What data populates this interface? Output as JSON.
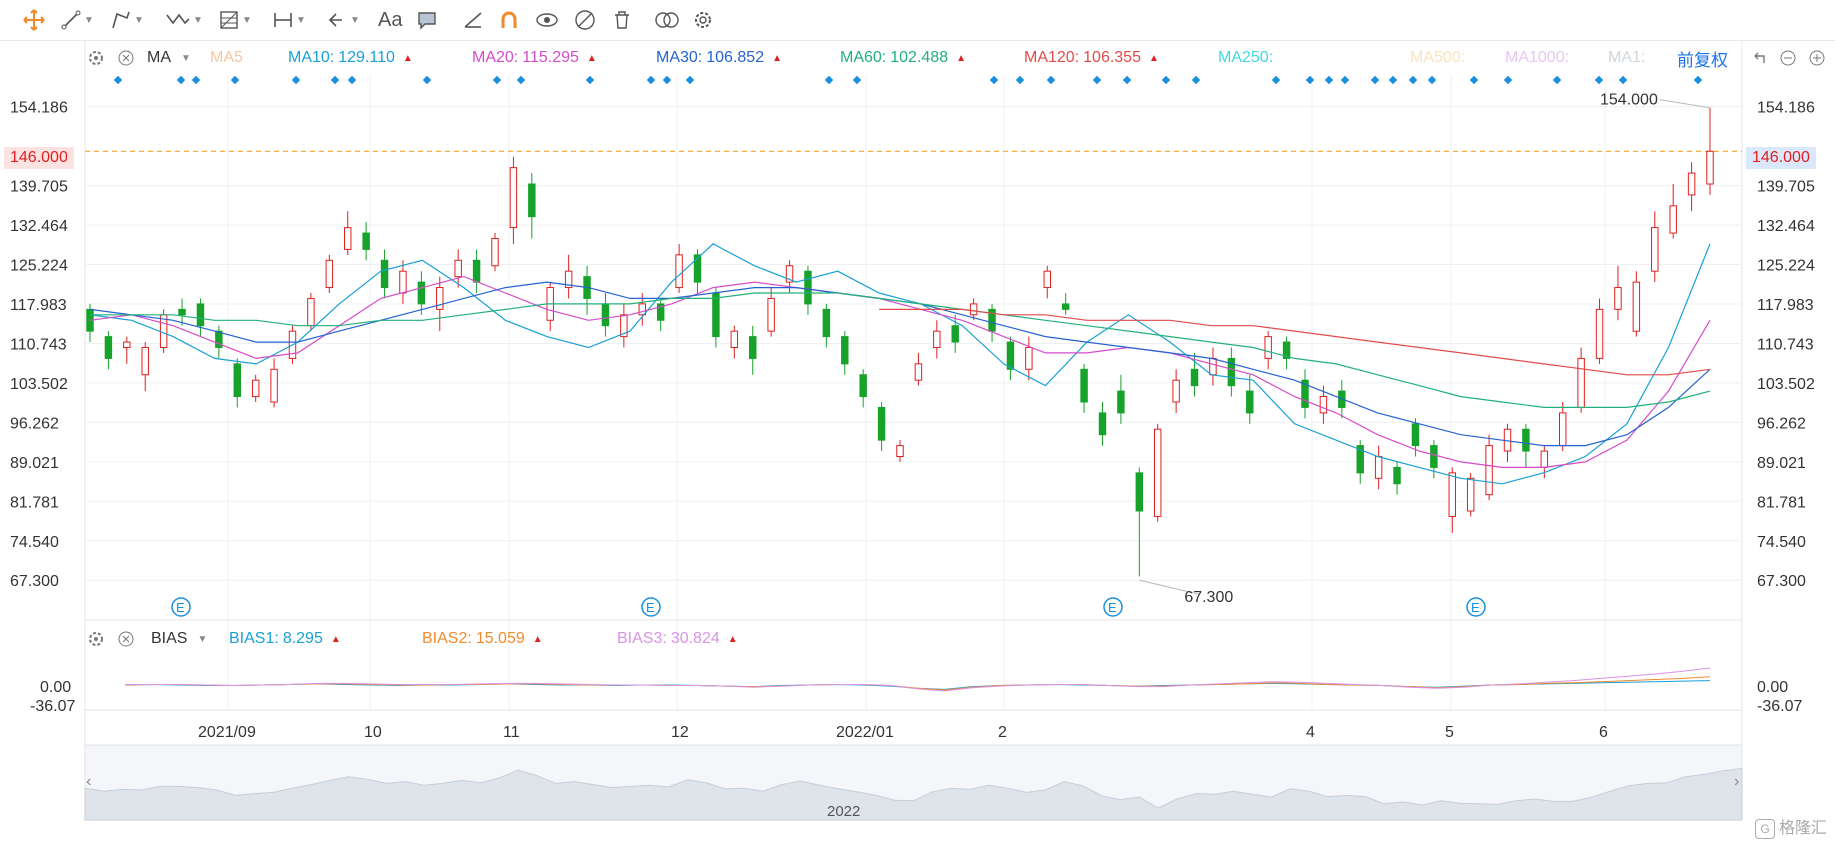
{
  "toolbar": {
    "icons": [
      "crosshair-icon",
      "line-tool-icon",
      "polyline-tool-icon",
      "wave-tool-icon",
      "fib-tool-icon",
      "measure-icon",
      "undo-icon",
      "text-tool-icon",
      "comment-icon",
      "ruler-icon",
      "magnet-icon",
      "eye-lock-icon",
      "eye-hide-icon",
      "delete-icon",
      "compare-icon",
      "settings-icon"
    ],
    "text_label": "Aa"
  },
  "main_legend": {
    "indicator": "MA",
    "items": [
      {
        "label": "MA5",
        "value": "",
        "color": "#f7c7a0",
        "arrow": false
      },
      {
        "label": "MA10:",
        "value": "129.110",
        "color": "#1aa0d6",
        "arrow": true
      },
      {
        "label": "MA20:",
        "value": "115.295",
        "color": "#d54cc9",
        "arrow": true
      },
      {
        "label": "MA30:",
        "value": "106.852",
        "color": "#2563d0",
        "arrow": true
      },
      {
        "label": "MA60:",
        "value": "102.488",
        "color": "#22b07a",
        "arrow": true
      },
      {
        "label": "MA120:",
        "value": "106.355",
        "color": "#e14b4b",
        "arrow": true
      },
      {
        "label": "MA250:",
        "value": "",
        "color": "#44d7e0",
        "arrow": false
      },
      {
        "label": "MA500:",
        "value": "",
        "color": "#f9e3bd",
        "arrow": false
      },
      {
        "label": "MA1000:",
        "value": "",
        "color": "#e5c7f2",
        "arrow": false
      },
      {
        "label": "MA1:",
        "value": "",
        "color": "#cfd6dd",
        "arrow": false
      }
    ],
    "adjust": "前复权"
  },
  "sub_legend": {
    "indicator": "BIAS",
    "items": [
      {
        "label": "BIAS1:",
        "value": "8.295",
        "color": "#1aa0d6"
      },
      {
        "label": "BIAS2:",
        "value": "15.059",
        "color": "#f28a2c"
      },
      {
        "label": "BIAS3:",
        "value": "30.824",
        "color": "#d993e6"
      }
    ]
  },
  "price_axis": [
    "154.186",
    "139.705",
    "132.464",
    "125.224",
    "117.983",
    "110.743",
    "103.502",
    "96.262",
    "89.021",
    "81.781",
    "74.540",
    "67.300"
  ],
  "current_price": "146.000",
  "bias_axis": [
    "0.00",
    "-36.07"
  ],
  "x_axis": [
    "2021/09",
    "10",
    "11",
    "12",
    "2022/01",
    "2",
    "4",
    "5",
    "6"
  ],
  "navigator_label": "2022",
  "annotations": {
    "high": "154.000",
    "low": "67.300"
  },
  "event_marker": "E",
  "watermark": "格隆汇",
  "colors": {
    "up": "#e02020",
    "down": "#17a22a",
    "grid": "#eef0f3",
    "dash": "#f5a623",
    "dots": "#1a8fe0"
  },
  "chart_data": {
    "type": "candlestick",
    "price_range": [
      67.3,
      154.186
    ],
    "series_ma": [
      {
        "name": "MA10",
        "color": "#1aa0d6",
        "values": [
          116,
          115,
          112,
          108,
          107,
          111,
          118,
          124,
          126,
          121,
          115,
          112,
          110,
          113,
          122,
          129,
          125,
          122,
          124,
          120,
          118,
          114,
          107,
          103,
          111,
          116,
          111,
          105,
          104,
          96,
          93,
          90,
          88,
          86,
          85,
          87,
          90,
          96,
          110,
          129
        ]
      },
      {
        "name": "MA20",
        "color": "#d54cc9",
        "values": [
          115,
          116,
          114,
          111,
          108,
          109,
          114,
          119,
          121,
          123,
          120,
          117,
          115,
          116,
          118,
          121,
          122,
          121,
          120,
          119,
          117,
          115,
          112,
          109,
          109,
          110,
          109,
          107,
          105,
          101,
          98,
          94,
          91,
          89,
          88,
          88,
          89,
          93,
          102,
          115
        ]
      },
      {
        "name": "MA30",
        "color": "#2563d0",
        "values": [
          117,
          116,
          115,
          113,
          111,
          111,
          113,
          115,
          117,
          119,
          121,
          122,
          121,
          119,
          119,
          120,
          121,
          121,
          120,
          119,
          118,
          116,
          114,
          112,
          111,
          110,
          109,
          108,
          106,
          104,
          101,
          98,
          96,
          94,
          93,
          92,
          92,
          94,
          99,
          106
        ]
      },
      {
        "name": "MA60",
        "color": "#22b07a",
        "values": [
          116,
          116,
          116,
          115,
          115,
          114,
          114,
          115,
          115,
          116,
          117,
          118,
          118,
          118,
          119,
          119,
          120,
          120,
          120,
          119,
          118,
          117,
          116,
          115,
          114,
          113,
          112,
          111,
          110,
          108,
          107,
          105,
          103,
          101,
          100,
          99,
          99,
          99,
          100,
          102
        ]
      },
      {
        "name": "MA120",
        "color": "#e14b4b",
        "values": [
          null,
          null,
          null,
          null,
          null,
          null,
          null,
          null,
          null,
          null,
          null,
          null,
          null,
          null,
          null,
          null,
          null,
          null,
          null,
          117,
          117,
          117,
          116,
          116,
          115,
          115,
          115,
          114,
          114,
          113,
          112,
          111,
          110,
          109,
          108,
          107,
          106,
          105,
          105,
          106
        ]
      }
    ],
    "candles": [
      {
        "o": 117,
        "c": 113,
        "h": 118,
        "l": 111
      },
      {
        "o": 112,
        "c": 108,
        "h": 113,
        "l": 106
      },
      {
        "o": 110,
        "c": 111,
        "h": 112,
        "l": 107
      },
      {
        "o": 105,
        "c": 110,
        "h": 111,
        "l": 102
      },
      {
        "o": 110,
        "c": 116,
        "h": 117,
        "l": 109
      },
      {
        "o": 117,
        "c": 116,
        "h": 119,
        "l": 114
      },
      {
        "o": 118,
        "c": 114,
        "h": 119,
        "l": 112
      },
      {
        "o": 113,
        "c": 110,
        "h": 114,
        "l": 108
      },
      {
        "o": 107,
        "c": 101,
        "h": 108,
        "l": 99
      },
      {
        "o": 101,
        "c": 104,
        "h": 105,
        "l": 100
      },
      {
        "o": 100,
        "c": 106,
        "h": 108,
        "l": 99
      },
      {
        "o": 108,
        "c": 113,
        "h": 114,
        "l": 107
      },
      {
        "o": 114,
        "c": 119,
        "h": 120,
        "l": 113
      },
      {
        "o": 121,
        "c": 126,
        "h": 127,
        "l": 120
      },
      {
        "o": 128,
        "c": 132,
        "h": 135,
        "l": 127
      },
      {
        "o": 131,
        "c": 128,
        "h": 133,
        "l": 126
      },
      {
        "o": 126,
        "c": 121,
        "h": 128,
        "l": 119
      },
      {
        "o": 120,
        "c": 124,
        "h": 126,
        "l": 118
      },
      {
        "o": 122,
        "c": 118,
        "h": 124,
        "l": 116
      },
      {
        "o": 117,
        "c": 121,
        "h": 123,
        "l": 113
      },
      {
        "o": 123,
        "c": 126,
        "h": 128,
        "l": 121
      },
      {
        "o": 126,
        "c": 122,
        "h": 128,
        "l": 120
      },
      {
        "o": 125,
        "c": 130,
        "h": 131,
        "l": 124
      },
      {
        "o": 132,
        "c": 143,
        "h": 145,
        "l": 129
      },
      {
        "o": 140,
        "c": 134,
        "h": 142,
        "l": 130
      },
      {
        "o": 115,
        "c": 121,
        "h": 122,
        "l": 113
      },
      {
        "o": 121,
        "c": 124,
        "h": 127,
        "l": 119
      },
      {
        "o": 123,
        "c": 119,
        "h": 125,
        "l": 116
      },
      {
        "o": 118,
        "c": 114,
        "h": 120,
        "l": 112
      },
      {
        "o": 112,
        "c": 116,
        "h": 118,
        "l": 110
      },
      {
        "o": 116,
        "c": 118,
        "h": 120,
        "l": 114
      },
      {
        "o": 118,
        "c": 115,
        "h": 119,
        "l": 113
      },
      {
        "o": 121,
        "c": 127,
        "h": 129,
        "l": 120
      },
      {
        "o": 127,
        "c": 122,
        "h": 128,
        "l": 120
      },
      {
        "o": 120,
        "c": 112,
        "h": 121,
        "l": 110
      },
      {
        "o": 110,
        "c": 113,
        "h": 114,
        "l": 108
      },
      {
        "o": 112,
        "c": 108,
        "h": 114,
        "l": 105
      },
      {
        "o": 113,
        "c": 119,
        "h": 121,
        "l": 112
      },
      {
        "o": 122,
        "c": 125,
        "h": 126,
        "l": 120
      },
      {
        "o": 124,
        "c": 118,
        "h": 125,
        "l": 116
      },
      {
        "o": 117,
        "c": 112,
        "h": 118,
        "l": 110
      },
      {
        "o": 112,
        "c": 107,
        "h": 113,
        "l": 105
      },
      {
        "o": 105,
        "c": 101,
        "h": 106,
        "l": 99
      },
      {
        "o": 99,
        "c": 93,
        "h": 100,
        "l": 91
      },
      {
        "o": 90,
        "c": 92,
        "h": 93,
        "l": 89
      },
      {
        "o": 104,
        "c": 107,
        "h": 109,
        "l": 103
      },
      {
        "o": 110,
        "c": 113,
        "h": 115,
        "l": 108
      },
      {
        "o": 114,
        "c": 111,
        "h": 116,
        "l": 109
      },
      {
        "o": 116,
        "c": 118,
        "h": 119,
        "l": 115
      },
      {
        "o": 117,
        "c": 113,
        "h": 118,
        "l": 111
      },
      {
        "o": 111,
        "c": 106,
        "h": 112,
        "l": 104
      },
      {
        "o": 106,
        "c": 110,
        "h": 112,
        "l": 104
      },
      {
        "o": 121,
        "c": 124,
        "h": 125,
        "l": 119
      },
      {
        "o": 118,
        "c": 117,
        "h": 120,
        "l": 116
      },
      {
        "o": 106,
        "c": 100,
        "h": 107,
        "l": 98
      },
      {
        "o": 98,
        "c": 94,
        "h": 100,
        "l": 92
      },
      {
        "o": 102,
        "c": 98,
        "h": 105,
        "l": 96
      },
      {
        "o": 87,
        "c": 80,
        "h": 88,
        "l": 68
      },
      {
        "o": 79,
        "c": 95,
        "h": 96,
        "l": 78
      },
      {
        "o": 100,
        "c": 104,
        "h": 106,
        "l": 98
      },
      {
        "o": 106,
        "c": 103,
        "h": 109,
        "l": 101
      },
      {
        "o": 105,
        "c": 108,
        "h": 110,
        "l": 103
      },
      {
        "o": 108,
        "c": 103,
        "h": 110,
        "l": 101
      },
      {
        "o": 102,
        "c": 98,
        "h": 105,
        "l": 96
      },
      {
        "o": 108,
        "c": 112,
        "h": 113,
        "l": 106
      },
      {
        "o": 111,
        "c": 108,
        "h": 112,
        "l": 106
      },
      {
        "o": 104,
        "c": 99,
        "h": 106,
        "l": 97
      },
      {
        "o": 98,
        "c": 101,
        "h": 103,
        "l": 96
      },
      {
        "o": 102,
        "c": 99,
        "h": 104,
        "l": 97
      },
      {
        "o": 92,
        "c": 87,
        "h": 93,
        "l": 85
      },
      {
        "o": 86,
        "c": 90,
        "h": 92,
        "l": 84
      },
      {
        "o": 88,
        "c": 85,
        "h": 89,
        "l": 83
      },
      {
        "o": 96,
        "c": 92,
        "h": 97,
        "l": 90
      },
      {
        "o": 92,
        "c": 88,
        "h": 93,
        "l": 86
      },
      {
        "o": 79,
        "c": 87,
        "h": 88,
        "l": 76
      },
      {
        "o": 80,
        "c": 86,
        "h": 87,
        "l": 79
      },
      {
        "o": 83,
        "c": 92,
        "h": 94,
        "l": 82
      },
      {
        "o": 91,
        "c": 95,
        "h": 96,
        "l": 89
      },
      {
        "o": 95,
        "c": 91,
        "h": 96,
        "l": 88
      },
      {
        "o": 88,
        "c": 91,
        "h": 92,
        "l": 86
      },
      {
        "o": 92,
        "c": 98,
        "h": 100,
        "l": 91
      },
      {
        "o": 99,
        "c": 108,
        "h": 110,
        "l": 98
      },
      {
        "o": 108,
        "c": 117,
        "h": 119,
        "l": 107
      },
      {
        "o": 117,
        "c": 121,
        "h": 125,
        "l": 115
      },
      {
        "o": 113,
        "c": 122,
        "h": 124,
        "l": 112
      },
      {
        "o": 124,
        "c": 132,
        "h": 135,
        "l": 122
      },
      {
        "o": 131,
        "c": 136,
        "h": 140,
        "l": 130
      },
      {
        "o": 138,
        "c": 142,
        "h": 144,
        "l": 135
      },
      {
        "o": 140,
        "c": 146,
        "h": 154,
        "l": 138
      }
    ],
    "bias": {
      "BIAS1": [
        0,
        1,
        0,
        -1,
        -1,
        0,
        1,
        2,
        1,
        0,
        -1,
        0,
        0,
        1,
        2,
        1,
        0,
        0,
        -1,
        0,
        0,
        -1,
        -2,
        -3,
        -1,
        0,
        1,
        0,
        -2,
        -6,
        -8,
        -3,
        -1,
        0,
        1,
        0,
        -1,
        -2,
        -1,
        0,
        1,
        2,
        3,
        2,
        1,
        0,
        -1,
        -3,
        -4,
        -2,
        0,
        1,
        2,
        3,
        4,
        5,
        6,
        7,
        8
      ],
      "BIAS2": [
        0,
        1,
        1,
        0,
        -1,
        0,
        1,
        2,
        2,
        1,
        0,
        0,
        1,
        1,
        2,
        2,
        1,
        0,
        0,
        0,
        -1,
        -1,
        -2,
        -3,
        -2,
        0,
        1,
        1,
        -1,
        -6,
        -9,
        -4,
        -1,
        0,
        1,
        1,
        -1,
        -2,
        -2,
        0,
        1,
        2,
        4,
        3,
        1,
        0,
        -1,
        -3,
        -5,
        -3,
        0,
        1,
        3,
        4,
        6,
        8,
        10,
        12,
        15
      ],
      "BIAS3": [
        1,
        1,
        1,
        0,
        -1,
        0,
        1,
        3,
        3,
        2,
        1,
        1,
        1,
        2,
        3,
        3,
        2,
        1,
        0,
        0,
        -1,
        -1,
        -2,
        -4,
        -2,
        0,
        1,
        1,
        -1,
        -7,
        -11,
        -5,
        -2,
        0,
        1,
        1,
        -1,
        -3,
        -3,
        0,
        2,
        4,
        6,
        5,
        3,
        1,
        -1,
        -4,
        -6,
        -4,
        0,
        2,
        5,
        8,
        12,
        16,
        20,
        25,
        31
      ]
    }
  }
}
